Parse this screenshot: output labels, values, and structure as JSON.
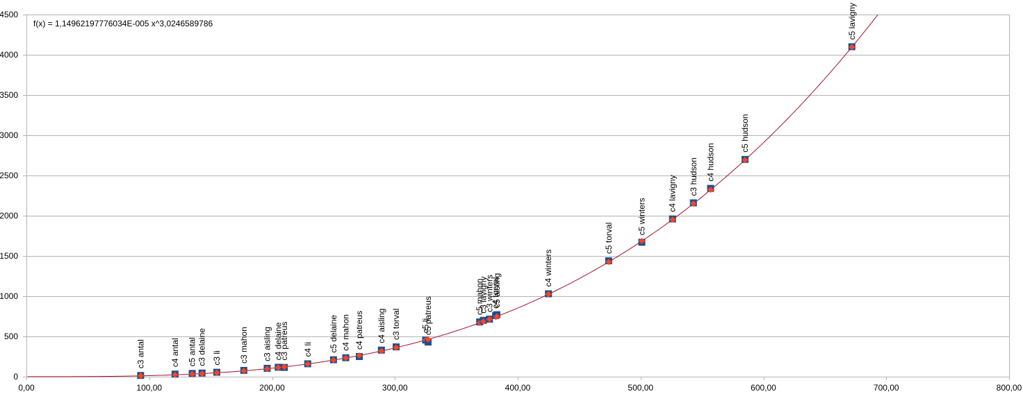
{
  "chart_data": {
    "type": "scatter",
    "trendline_equation": "f(x) = 1,14962197776034E-005 x^3,0246589786",
    "trendline": {
      "a": 1.14962197776034e-05,
      "b": 3.0246589786
    },
    "xlim": [
      0,
      800
    ],
    "ylim": [
      0,
      4500
    ],
    "x_ticks": [
      0,
      100,
      200,
      300,
      400,
      500,
      600,
      700,
      800
    ],
    "x_tick_labels": [
      "0,00",
      "100,00",
      "200,00",
      "300,00",
      "400,00",
      "500,00",
      "600,00",
      "700,00",
      "800,00"
    ],
    "y_ticks": [
      0,
      500,
      1000,
      1500,
      2000,
      2500,
      3000,
      3500,
      4000,
      4500
    ],
    "y_tick_labels": [
      "0",
      "500",
      "1000",
      "1500",
      "2000",
      "2500",
      "3000",
      "3500",
      "4000",
      "4500"
    ],
    "grid": true,
    "colors": {
      "marker": "#1f4e8c",
      "trend_marker": "#ff4422",
      "trendline": "#a0102a",
      "grid": "#b3b3b3",
      "axis": "#b3b3b3"
    },
    "points": [
      {
        "label": "c3 antal",
        "x": 93,
        "y": 15
      },
      {
        "label": "c4 antal",
        "x": 121,
        "y": 32
      },
      {
        "label": "c5 antal",
        "x": 135,
        "y": 40
      },
      {
        "label": "c3 delaine",
        "x": 143,
        "y": 45
      },
      {
        "label": "c3 li",
        "x": 155,
        "y": 55
      },
      {
        "label": "c3 mahon",
        "x": 177,
        "y": 78
      },
      {
        "label": "c3 aisling",
        "x": 196,
        "y": 104
      },
      {
        "label": "c4 delaine",
        "x": 205,
        "y": 117
      },
      {
        "label": "c3 patreus",
        "x": 210,
        "y": 115
      },
      {
        "label": "c4 li",
        "x": 229,
        "y": 160
      },
      {
        "label": "c5 delaine",
        "x": 250,
        "y": 210
      },
      {
        "label": "c4 mahon",
        "x": 260,
        "y": 235
      },
      {
        "label": "c4 patreus",
        "x": 271,
        "y": 250
      },
      {
        "label": "c4 aisling",
        "x": 289,
        "y": 330
      },
      {
        "label": "c3 torval",
        "x": 301,
        "y": 370
      },
      {
        "label": "c5 li",
        "x": 325,
        "y": 455
      },
      {
        "label": "c5 patreus",
        "x": 327,
        "y": 430
      },
      {
        "label": "c5 mahon",
        "x": 369,
        "y": 680
      },
      {
        "label": "c3 lavigny",
        "x": 372,
        "y": 700
      },
      {
        "label": "c3 winters",
        "x": 377,
        "y": 715
      },
      {
        "label": "c4 torval",
        "x": 382,
        "y": 760
      },
      {
        "label": "c5 aisling",
        "x": 383,
        "y": 770
      },
      {
        "label": "c4 winters",
        "x": 425,
        "y": 1030
      },
      {
        "label": "c5 torval",
        "x": 474,
        "y": 1440
      },
      {
        "label": "c5 winters",
        "x": 501,
        "y": 1670
      },
      {
        "label": "c4 lavigny",
        "x": 526,
        "y": 1960
      },
      {
        "label": "c3 hudson",
        "x": 543,
        "y": 2160
      },
      {
        "label": "c4 hudson",
        "x": 557,
        "y": 2340
      },
      {
        "label": "c5 hudson",
        "x": 585,
        "y": 2700
      },
      {
        "label": "c5 lavigny",
        "x": 672,
        "y": 4100
      }
    ]
  }
}
